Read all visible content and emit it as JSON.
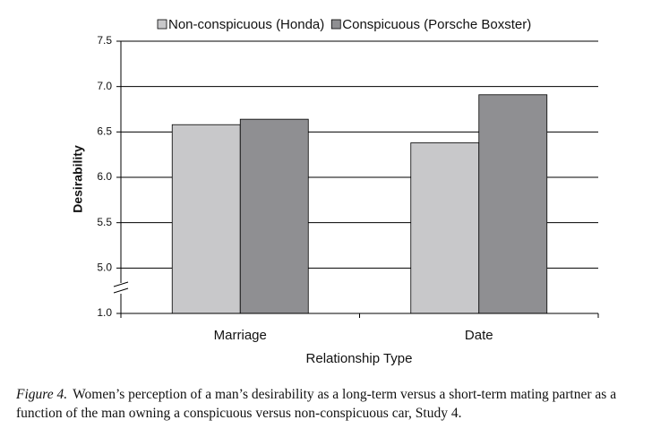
{
  "chart_data": {
    "type": "bar",
    "categories": [
      "Marriage",
      "Date"
    ],
    "series": [
      {
        "name": "Non-conspicuous (Honda)",
        "color": "#c8c8ca",
        "values": [
          6.58,
          6.38
        ]
      },
      {
        "name": "Conspicuous (Porsche Boxster)",
        "color": "#8f8f92",
        "values": [
          6.64,
          6.91
        ]
      }
    ],
    "ylabel": "Desirability",
    "xlabel": "Relationship Type",
    "ylim": [
      1.0,
      7.5
    ],
    "yticks": [
      {
        "value": 1,
        "label": "1.0"
      },
      {
        "value": 5,
        "label": "5.0"
      },
      5.5,
      {
        "value": 6,
        "label": "6.0"
      },
      6.5,
      {
        "value": 7,
        "label": "7.0"
      },
      7.5
    ],
    "grid": true,
    "legend": "top"
  },
  "caption": {
    "label": "Figure 4.",
    "text": "Women’s perception of a man’s desirability as a long-term versus a short-term mating partner as a function of the man owning a conspicuous versus non-conspicuous car, Study 4."
  }
}
